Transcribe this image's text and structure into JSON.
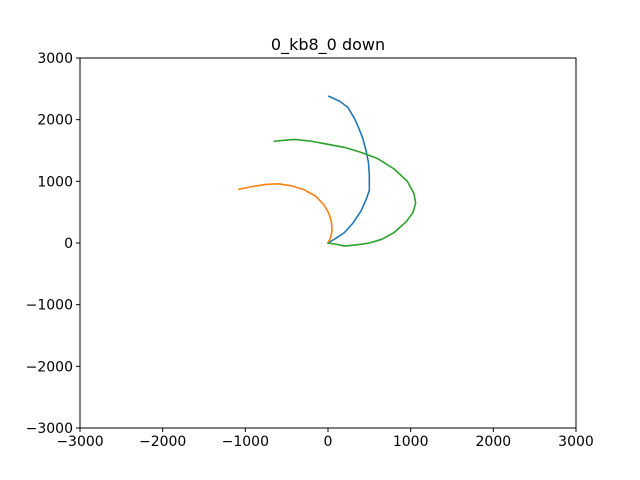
{
  "chart_data": {
    "type": "line",
    "title": "0_kb8_0 down",
    "xlabel": "",
    "ylabel": "",
    "xlim": [
      -3000,
      3000
    ],
    "ylim": [
      -3000,
      3000
    ],
    "xticks": [
      -3000,
      -2000,
      -1000,
      0,
      1000,
      2000,
      3000
    ],
    "yticks": [
      -3000,
      -2000,
      -1000,
      0,
      1000,
      2000,
      3000
    ],
    "xtick_labels": [
      "−3000",
      "−2000",
      "−1000",
      "0",
      "1000",
      "2000",
      "3000"
    ],
    "ytick_labels": [
      "−3000",
      "−2000",
      "−1000",
      "0",
      "1000",
      "2000",
      "3000"
    ],
    "grid": false,
    "legend": "none",
    "series": [
      {
        "color": "#1f77b4",
        "x": [
          0,
          100,
          200,
          300,
          400,
          460,
          500,
          500,
          490,
          460,
          420,
          370,
          320,
          240,
          140,
          10
        ],
        "y": [
          0,
          80,
          170,
          320,
          520,
          700,
          850,
          1100,
          1300,
          1500,
          1700,
          1870,
          2020,
          2200,
          2300,
          2380
        ]
      },
      {
        "color": "#ff7f0e",
        "x": [
          0,
          30,
          50,
          40,
          10,
          -50,
          -150,
          -300,
          -450,
          -600,
          -750,
          -900,
          -1080
        ],
        "y": [
          0,
          80,
          200,
          350,
          480,
          620,
          760,
          870,
          930,
          960,
          950,
          920,
          870
        ]
      },
      {
        "color": "#2ca02c",
        "x": [
          0,
          100,
          200,
          350,
          500,
          650,
          800,
          950,
          1030,
          1060,
          1040,
          960,
          800,
          600,
          400,
          200,
          0,
          -200,
          -400,
          -500,
          -650
        ],
        "y": [
          0,
          -20,
          -50,
          -30,
          0,
          60,
          170,
          350,
          500,
          650,
          800,
          1000,
          1200,
          1370,
          1470,
          1550,
          1600,
          1650,
          1680,
          1670,
          1650
        ]
      }
    ]
  }
}
